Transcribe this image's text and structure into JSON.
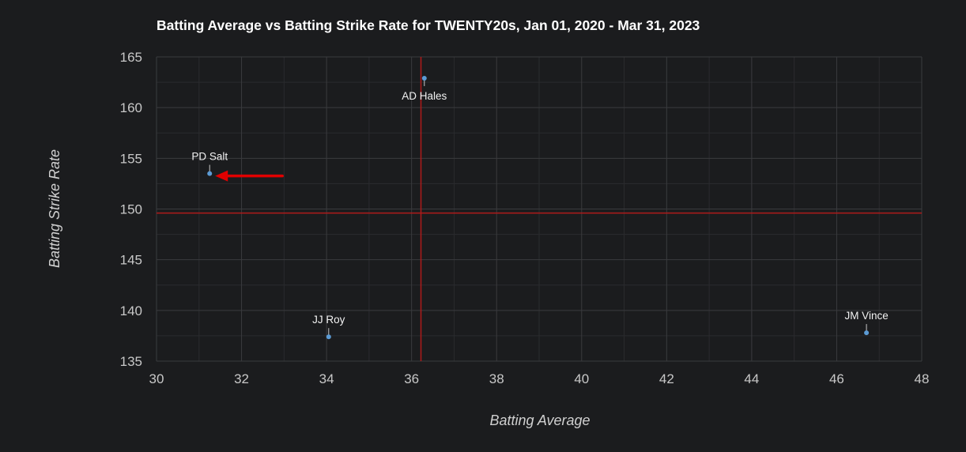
{
  "chart_data": {
    "type": "scatter",
    "title": "Batting Average vs Batting Strike Rate for TWENTY20s, Jan 01, 2020 - Mar 31, 2023",
    "xlabel": "Batting Average",
    "ylabel": "Batting Strike Rate",
    "xlim": [
      30,
      48
    ],
    "ylim": [
      135,
      165
    ],
    "x_ticks": [
      30,
      32,
      34,
      36,
      38,
      40,
      42,
      44,
      46,
      48
    ],
    "y_ticks": [
      135,
      140,
      145,
      150,
      155,
      160,
      165
    ],
    "grid": true,
    "points": [
      {
        "label": "AD Hales",
        "x": 36.3,
        "y": 162.9,
        "label_position": "below"
      },
      {
        "label": "PD Salt",
        "x": 31.25,
        "y": 153.5,
        "label_position": "above"
      },
      {
        "label": "JJ Roy",
        "x": 34.05,
        "y": 137.4,
        "label_position": "above"
      },
      {
        "label": "JM Vince",
        "x": 46.7,
        "y": 137.8,
        "label_position": "above"
      }
    ],
    "reference_lines": {
      "x": 36.22,
      "y": 149.6
    },
    "annotation": {
      "type": "arrow",
      "points_to": "PD Salt",
      "color": "#e00000"
    }
  },
  "colors": {
    "background": "#1b1c1e",
    "grid_major": "#3a3b3e",
    "grid_minor": "#2a2b2e",
    "point": "#5b9bd5",
    "reference_line": "#b01a1a",
    "arrow": "#e00000"
  }
}
